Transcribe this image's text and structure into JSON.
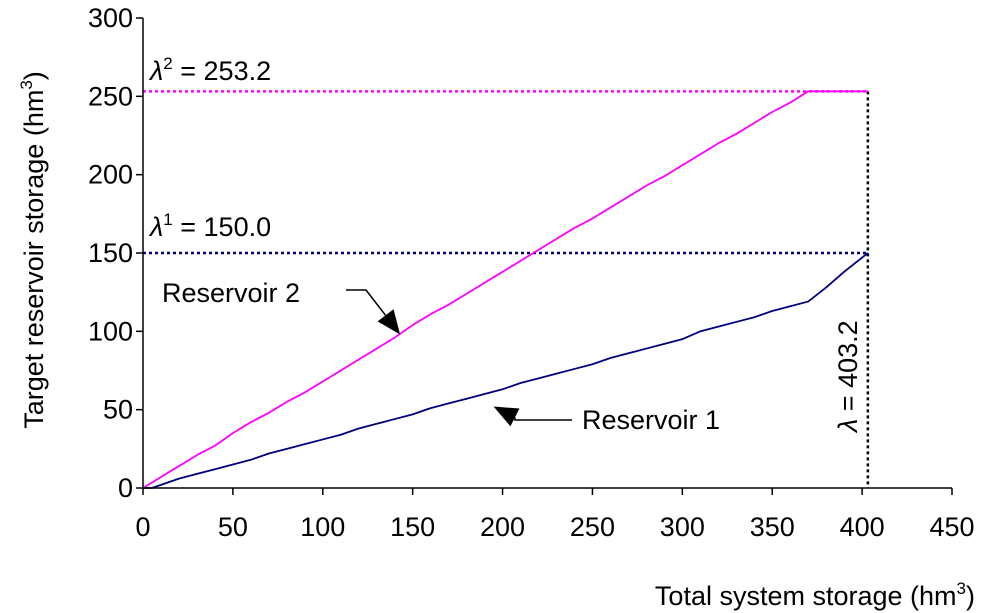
{
  "chart_data": {
    "type": "line",
    "xlabel": "Total system storage (hm",
    "xlabel_sup": "3",
    "xlabel_end": ")",
    "ylabel": "Target reservoir storage (hm",
    "ylabel_sup": "3",
    "ylabel_end": ")",
    "xlim": [
      0,
      450
    ],
    "ylim": [
      0,
      300
    ],
    "x_ticks": [
      "0",
      "50",
      "100",
      "150",
      "200",
      "250",
      "300",
      "350",
      "400",
      "450"
    ],
    "y_ticks": [
      "0",
      "50",
      "100",
      "150",
      "200",
      "250",
      "300"
    ],
    "grid": false,
    "colors": {
      "reservoir_1": "#000080",
      "reservoir_2": "#ff00ff",
      "axis": "#000000"
    },
    "series": [
      {
        "name": "Reservoir 1",
        "x": [
          0,
          5,
          10,
          20,
          30,
          40,
          50,
          60,
          70,
          80,
          90,
          100,
          110,
          120,
          130,
          140,
          150,
          160,
          170,
          180,
          190,
          200,
          210,
          220,
          230,
          240,
          250,
          260,
          270,
          280,
          290,
          300,
          310,
          320,
          330,
          340,
          350,
          360,
          370,
          380,
          390,
          403.2
        ],
        "y": [
          0,
          0,
          2,
          6,
          9,
          12,
          15,
          18,
          22,
          25,
          28,
          31,
          34,
          38,
          41,
          44,
          47,
          51,
          54,
          57,
          60,
          63,
          67,
          70,
          73,
          76,
          79,
          83,
          86,
          89,
          92,
          95,
          100,
          103,
          106,
          109,
          113,
          116,
          119,
          128,
          138,
          150.0
        ]
      },
      {
        "name": "Reservoir 2",
        "x": [
          0,
          10,
          20,
          30,
          40,
          50,
          60,
          70,
          80,
          90,
          100,
          110,
          120,
          130,
          140,
          150,
          160,
          170,
          180,
          190,
          200,
          210,
          220,
          230,
          240,
          250,
          260,
          270,
          280,
          290,
          300,
          310,
          320,
          330,
          340,
          350,
          360,
          370,
          380,
          390,
          403.2
        ],
        "y": [
          0,
          7,
          14,
          21,
          27,
          35,
          42,
          48,
          55,
          61,
          68,
          75,
          82,
          89,
          96,
          104,
          111,
          117,
          124,
          131,
          138,
          145,
          152,
          159,
          166,
          172,
          179,
          186,
          193,
          199,
          206,
          213,
          220,
          226,
          233,
          240,
          246,
          253.2,
          253.2,
          253.2,
          253.2
        ]
      }
    ],
    "reference_lines": [
      {
        "type": "horizontal",
        "y": 253.2,
        "color": "#ff00ff",
        "label_symbol": "λ",
        "label_sup": "2",
        "label_value": " = 253.2"
      },
      {
        "type": "horizontal",
        "y": 150.0,
        "color": "#000080",
        "label_symbol": "λ",
        "label_sup": "1",
        "label_value": " = 150.0"
      },
      {
        "type": "vertical",
        "x": 403.2,
        "color": "#000000",
        "label_symbol": "λ",
        "label_value": " = 403.2"
      }
    ],
    "annotations": [
      {
        "text": "Reservoir 2",
        "points_to": [
          143,
          98
        ]
      },
      {
        "text": "Reservoir 1",
        "points_to": [
          195,
          52
        ]
      }
    ]
  }
}
